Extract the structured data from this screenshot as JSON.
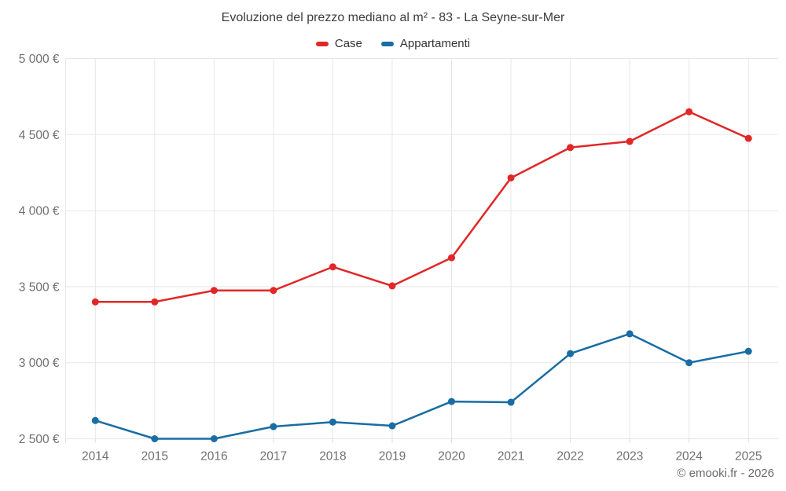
{
  "chart_data": {
    "type": "line",
    "title": "Evoluzione del prezzo mediano al m² - 83 - La Seyne-sur-Mer",
    "categories": [
      "2014",
      "2015",
      "2016",
      "2017",
      "2018",
      "2019",
      "2020",
      "2021",
      "2022",
      "2023",
      "2024",
      "2025"
    ],
    "series": [
      {
        "name": "Case",
        "color": "#e12727",
        "values": [
          3400,
          3400,
          3475,
          3475,
          3630,
          3505,
          3690,
          4215,
          4415,
          4455,
          4650,
          4475
        ]
      },
      {
        "name": "Appartamenti",
        "color": "#196da4",
        "values": [
          2620,
          2500,
          2500,
          2580,
          2610,
          2585,
          2745,
          2740,
          3060,
          3190,
          3000,
          3075
        ]
      }
    ],
    "y_axis": {
      "min": 2500,
      "max": 5000,
      "step": 500,
      "tick_labels": [
        "2 500 €",
        "3 000 €",
        "3 500 €",
        "4 000 €",
        "4 500 €",
        "5 000 €"
      ]
    },
    "x_axis": {
      "tick_labels": [
        "2014",
        "2015",
        "2016",
        "2017",
        "2018",
        "2019",
        "2020",
        "2021",
        "2022",
        "2023",
        "2024",
        "2025"
      ]
    },
    "legend_position": "top",
    "grid": true,
    "attribution": "© emooki.fr - 2026",
    "colors": {
      "grid_line": "#e7e7e7",
      "axis_tick": "#dcdcdc",
      "axis_label": "#707070",
      "title_text": "#3d3d3d",
      "legend_text": "#333333"
    }
  }
}
